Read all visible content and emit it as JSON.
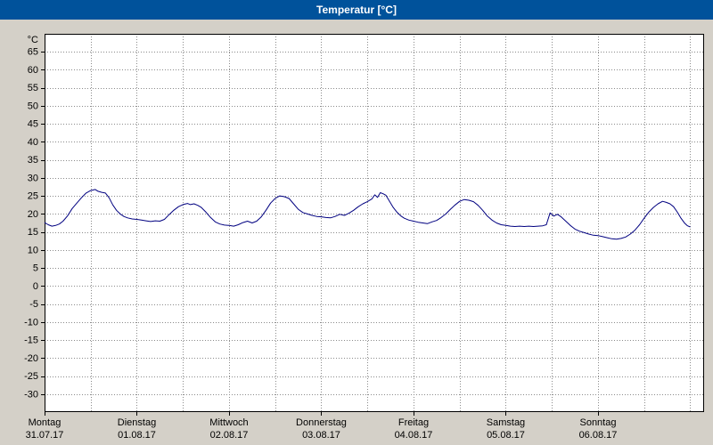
{
  "window": {
    "title": "Temperatur [°C]"
  },
  "colors": {
    "titlebar": "#00529b",
    "titlebar_text": "#ffffff",
    "background": "#d4d0c8",
    "plot_bg": "#ffffff",
    "grid": "#8a8a8a",
    "border": "#000000",
    "axis_text": "#000000",
    "line": "#000080"
  },
  "chart_data": {
    "type": "line",
    "title": "Temperatur [°C]",
    "xlabel": "",
    "ylabel": "°C",
    "ylim": [
      -35,
      70
    ],
    "yticks": [
      65,
      60,
      55,
      50,
      45,
      40,
      35,
      30,
      25,
      20,
      15,
      10,
      5,
      0,
      -5,
      -10,
      -15,
      -20,
      -25,
      -30
    ],
    "xlim_days": [
      0,
      7.15
    ],
    "grid": true,
    "legend": "none",
    "days": [
      {
        "name": "Montag",
        "date": "31.07.17"
      },
      {
        "name": "Dienstag",
        "date": "01.08.17"
      },
      {
        "name": "Mittwoch",
        "date": "02.08.17"
      },
      {
        "name": "Donnerstag",
        "date": "03.08.17"
      },
      {
        "name": "Freitag",
        "date": "04.08.17"
      },
      {
        "name": "Samstag",
        "date": "05.08.17"
      },
      {
        "name": "Sonntag",
        "date": "06.08.17"
      }
    ],
    "series": [
      {
        "name": "Temperatur",
        "color": "#000080",
        "points": [
          [
            0.0,
            17.6
          ],
          [
            0.04,
            17.0
          ],
          [
            0.08,
            16.6
          ],
          [
            0.12,
            16.8
          ],
          [
            0.16,
            17.2
          ],
          [
            0.2,
            18.0
          ],
          [
            0.25,
            19.5
          ],
          [
            0.3,
            21.5
          ],
          [
            0.35,
            23.0
          ],
          [
            0.4,
            24.5
          ],
          [
            0.45,
            25.8
          ],
          [
            0.5,
            26.5
          ],
          [
            0.55,
            26.8
          ],
          [
            0.58,
            26.3
          ],
          [
            0.62,
            26.0
          ],
          [
            0.66,
            25.8
          ],
          [
            0.7,
            24.5
          ],
          [
            0.74,
            22.5
          ],
          [
            0.78,
            21.0
          ],
          [
            0.82,
            20.0
          ],
          [
            0.86,
            19.3
          ],
          [
            0.9,
            18.9
          ],
          [
            0.95,
            18.6
          ],
          [
            1.0,
            18.5
          ],
          [
            1.05,
            18.3
          ],
          [
            1.1,
            18.1
          ],
          [
            1.15,
            17.9
          ],
          [
            1.2,
            18.1
          ],
          [
            1.25,
            18.0
          ],
          [
            1.3,
            18.5
          ],
          [
            1.35,
            19.8
          ],
          [
            1.4,
            21.0
          ],
          [
            1.45,
            22.0
          ],
          [
            1.5,
            22.6
          ],
          [
            1.55,
            22.9
          ],
          [
            1.58,
            22.6
          ],
          [
            1.62,
            22.8
          ],
          [
            1.66,
            22.4
          ],
          [
            1.7,
            21.8
          ],
          [
            1.75,
            20.5
          ],
          [
            1.8,
            19.0
          ],
          [
            1.85,
            17.8
          ],
          [
            1.9,
            17.2
          ],
          [
            1.95,
            16.9
          ],
          [
            2.0,
            16.8
          ],
          [
            2.05,
            16.6
          ],
          [
            2.1,
            17.0
          ],
          [
            2.15,
            17.6
          ],
          [
            2.2,
            18.0
          ],
          [
            2.25,
            17.5
          ],
          [
            2.3,
            18.0
          ],
          [
            2.35,
            19.2
          ],
          [
            2.4,
            21.0
          ],
          [
            2.45,
            23.0
          ],
          [
            2.5,
            24.3
          ],
          [
            2.55,
            25.0
          ],
          [
            2.6,
            24.8
          ],
          [
            2.65,
            24.3
          ],
          [
            2.7,
            22.8
          ],
          [
            2.75,
            21.3
          ],
          [
            2.8,
            20.4
          ],
          [
            2.85,
            20.0
          ],
          [
            2.9,
            19.6
          ],
          [
            2.95,
            19.3
          ],
          [
            3.0,
            19.2
          ],
          [
            3.05,
            19.0
          ],
          [
            3.1,
            18.9
          ],
          [
            3.15,
            19.3
          ],
          [
            3.2,
            19.9
          ],
          [
            3.25,
            19.6
          ],
          [
            3.3,
            20.2
          ],
          [
            3.35,
            21.0
          ],
          [
            3.4,
            22.0
          ],
          [
            3.45,
            22.8
          ],
          [
            3.5,
            23.4
          ],
          [
            3.55,
            24.2
          ],
          [
            3.58,
            25.3
          ],
          [
            3.61,
            24.6
          ],
          [
            3.64,
            25.9
          ],
          [
            3.67,
            25.6
          ],
          [
            3.7,
            25.2
          ],
          [
            3.74,
            23.5
          ],
          [
            3.78,
            21.8
          ],
          [
            3.82,
            20.5
          ],
          [
            3.86,
            19.5
          ],
          [
            3.9,
            18.8
          ],
          [
            3.95,
            18.3
          ],
          [
            4.0,
            18.0
          ],
          [
            4.05,
            17.7
          ],
          [
            4.1,
            17.5
          ],
          [
            4.15,
            17.3
          ],
          [
            4.2,
            17.8
          ],
          [
            4.25,
            18.2
          ],
          [
            4.3,
            19.0
          ],
          [
            4.35,
            20.0
          ],
          [
            4.4,
            21.3
          ],
          [
            4.45,
            22.5
          ],
          [
            4.5,
            23.5
          ],
          [
            4.55,
            24.0
          ],
          [
            4.6,
            23.8
          ],
          [
            4.65,
            23.4
          ],
          [
            4.7,
            22.4
          ],
          [
            4.75,
            21.0
          ],
          [
            4.8,
            19.4
          ],
          [
            4.85,
            18.3
          ],
          [
            4.9,
            17.5
          ],
          [
            4.95,
            17.0
          ],
          [
            5.0,
            16.8
          ],
          [
            5.05,
            16.6
          ],
          [
            5.1,
            16.5
          ],
          [
            5.15,
            16.6
          ],
          [
            5.2,
            16.5
          ],
          [
            5.25,
            16.6
          ],
          [
            5.3,
            16.5
          ],
          [
            5.35,
            16.6
          ],
          [
            5.4,
            16.7
          ],
          [
            5.44,
            17.0
          ],
          [
            5.48,
            20.3
          ],
          [
            5.52,
            19.4
          ],
          [
            5.56,
            19.9
          ],
          [
            5.6,
            19.2
          ],
          [
            5.65,
            18.0
          ],
          [
            5.7,
            16.8
          ],
          [
            5.75,
            15.8
          ],
          [
            5.8,
            15.2
          ],
          [
            5.85,
            14.8
          ],
          [
            5.9,
            14.4
          ],
          [
            5.95,
            14.1
          ],
          [
            6.0,
            14.0
          ],
          [
            6.05,
            13.7
          ],
          [
            6.1,
            13.4
          ],
          [
            6.15,
            13.1
          ],
          [
            6.2,
            13.0
          ],
          [
            6.25,
            13.2
          ],
          [
            6.3,
            13.6
          ],
          [
            6.35,
            14.4
          ],
          [
            6.4,
            15.5
          ],
          [
            6.45,
            17.0
          ],
          [
            6.5,
            18.8
          ],
          [
            6.55,
            20.5
          ],
          [
            6.6,
            21.8
          ],
          [
            6.65,
            22.8
          ],
          [
            6.7,
            23.5
          ],
          [
            6.74,
            23.2
          ],
          [
            6.78,
            22.8
          ],
          [
            6.82,
            22.0
          ],
          [
            6.86,
            20.5
          ],
          [
            6.9,
            18.8
          ],
          [
            6.94,
            17.4
          ],
          [
            6.97,
            16.7
          ],
          [
            7.0,
            16.4
          ]
        ]
      }
    ]
  }
}
